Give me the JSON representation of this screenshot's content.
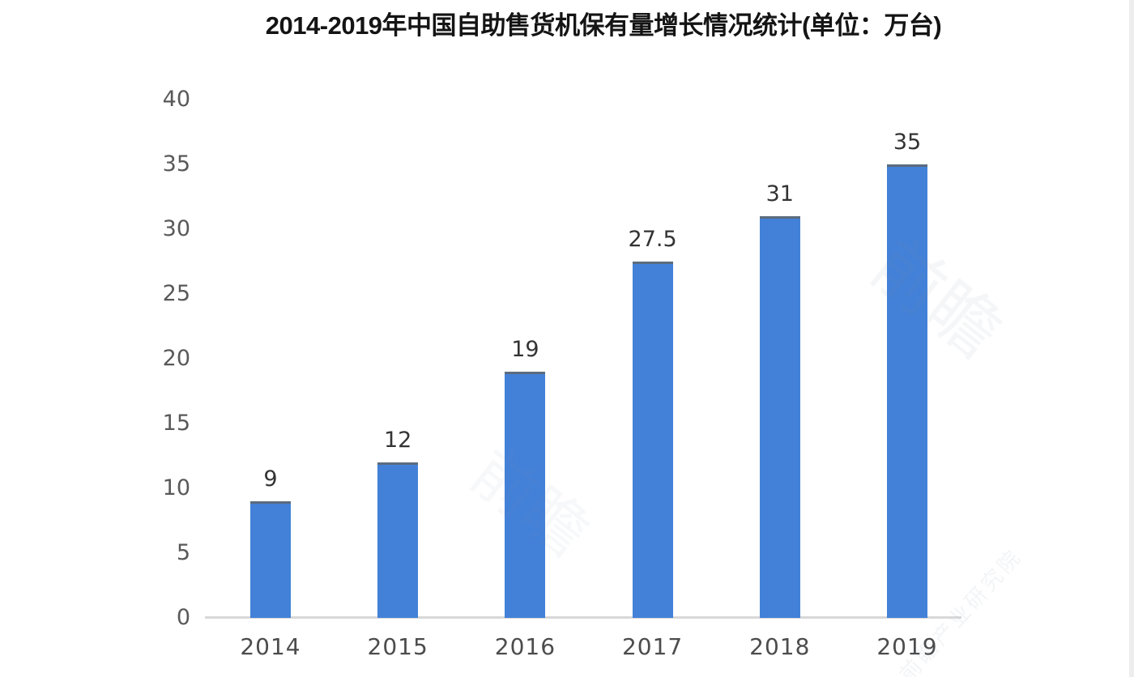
{
  "title": "2014-2019年中国自助售货机保有量增长情况统计(单位：万台)",
  "watermarks": [
    {
      "text": "前瞻"
    },
    {
      "text": "前瞻"
    },
    {
      "text": "前瞻产业研究院"
    }
  ],
  "chart_data": {
    "type": "bar",
    "title": "2014-2019年中国自助售货机保有量增长情况统计(单位：万台)",
    "categories": [
      "2014",
      "2015",
      "2016",
      "2017",
      "2018",
      "2019"
    ],
    "values": [
      9,
      12,
      19,
      27.5,
      31,
      35
    ],
    "value_labels": [
      "9",
      "12",
      "19",
      "27.5",
      "31",
      "35"
    ],
    "xlabel": "",
    "ylabel": "",
    "unit": "万台",
    "ylim": [
      0,
      40
    ],
    "y_ticks": [
      0,
      5,
      10,
      15,
      20,
      25,
      30,
      35,
      40
    ],
    "grid": false,
    "legend": false,
    "bar_color": "#4381d8",
    "bar_top_edge_color": "#5b6c7e",
    "axis_line_color": "#d8d8d8",
    "tick_label_color": "#595959",
    "value_label_color": "#333333",
    "title_color": "#141414",
    "background_color": "#ffffff"
  }
}
